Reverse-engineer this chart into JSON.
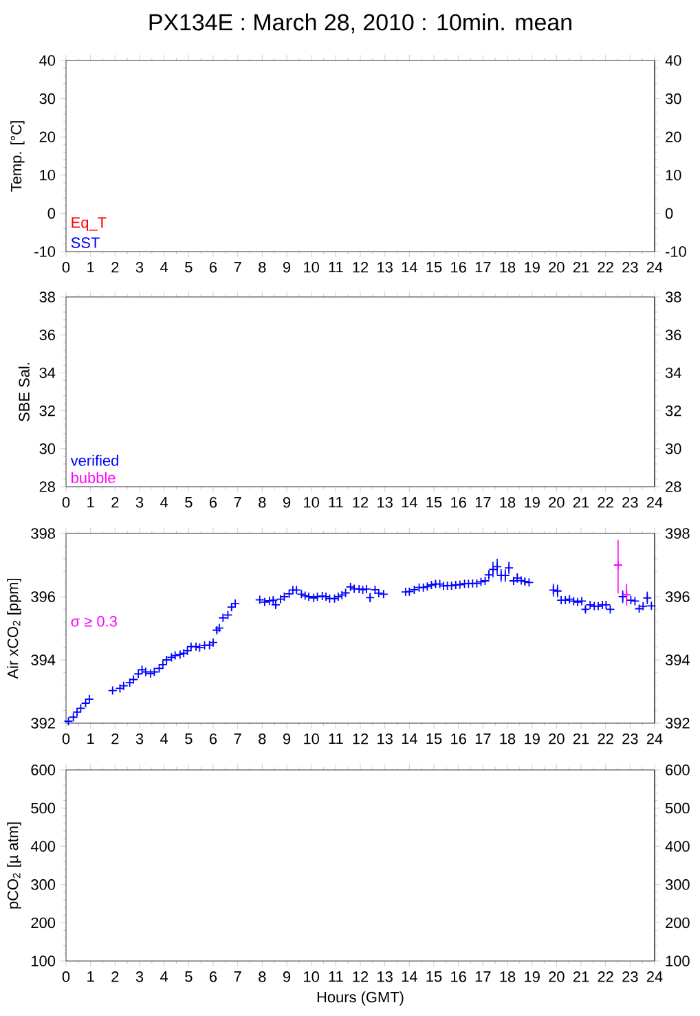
{
  "chart_data": [
    {
      "type": "scatter",
      "title": "PX134E : March 28, 2010 : 10min. mean",
      "ylabel": "Temp. [°C]",
      "xlim": [
        0,
        24
      ],
      "xticks": [
        0,
        1,
        2,
        3,
        4,
        5,
        6,
        7,
        8,
        9,
        10,
        11,
        12,
        13,
        14,
        15,
        16,
        17,
        18,
        19,
        20,
        21,
        22,
        23,
        24
      ],
      "ylim": [
        -10,
        40
      ],
      "yticks": [
        -10,
        0,
        10,
        20,
        30,
        40
      ],
      "y2lim": [
        -10,
        40
      ],
      "y2ticks": [
        -10,
        0,
        10,
        20,
        30,
        40
      ],
      "annotations": [
        "Eq_T",
        "SST"
      ]
    },
    {
      "type": "scatter",
      "ylabel": "SBE Sal.",
      "xlim": [
        0,
        24
      ],
      "xticks": [
        0,
        1,
        2,
        3,
        4,
        5,
        6,
        7,
        8,
        9,
        10,
        11,
        12,
        13,
        14,
        15,
        16,
        17,
        18,
        19,
        20,
        21,
        22,
        23,
        24
      ],
      "ylim": [
        28,
        38
      ],
      "yticks": [
        28,
        30,
        32,
        34,
        36,
        38
      ],
      "y2lim": [
        28,
        38
      ],
      "y2ticks": [
        28,
        30,
        32,
        34,
        36,
        38
      ],
      "annotations": [
        "verified",
        "bubble"
      ]
    },
    {
      "type": "scatter",
      "ylabel": "Air xCO$_{2}$ [ppm]",
      "xlim": [
        0,
        24
      ],
      "xticks": [
        0,
        1,
        2,
        3,
        4,
        5,
        6,
        7,
        8,
        9,
        10,
        11,
        12,
        13,
        14,
        15,
        16,
        17,
        18,
        19,
        20,
        21,
        22,
        23,
        24
      ],
      "ylim": [
        392,
        398
      ],
      "yticks": [
        392,
        394,
        396,
        398
      ],
      "y2lim": [
        392,
        398
      ],
      "y2ticks": [
        392,
        394,
        396,
        398
      ],
      "legend": "left",
      "marker": "cross",
      "series": [
        {
          "color": "#0000ff",
          "x": [
            0.1,
            0.3,
            0.45,
            0.6,
            0.8,
            0.95,
            1.9,
            2.2,
            2.35,
            2.6,
            2.75,
            2.95,
            3.1,
            3.25,
            3.45,
            3.6,
            3.8,
            3.95,
            4.1,
            4.3,
            4.45,
            4.65,
            4.8,
            4.95,
            5.1,
            5.3,
            5.45,
            5.65,
            5.85,
            6.0,
            6.15,
            6.25,
            6.4,
            6.6,
            6.75,
            6.9,
            7.9,
            8.1,
            8.3,
            8.45,
            8.55,
            8.75,
            8.9,
            9.1,
            9.25,
            9.4,
            9.6,
            9.75,
            9.9,
            10.1,
            10.25,
            10.45,
            10.6,
            10.75,
            10.95,
            11.1,
            11.25,
            11.4,
            11.6,
            11.75,
            11.95,
            12.1,
            12.25,
            12.4,
            12.6,
            12.75,
            12.95,
            13.85,
            14.0,
            14.2,
            14.4,
            14.57,
            14.73,
            14.9,
            15.07,
            15.24,
            15.39,
            15.55,
            15.72,
            15.89,
            16.06,
            16.25,
            16.41,
            16.58,
            16.75,
            16.92,
            17.09,
            17.24,
            17.41,
            17.58,
            17.74,
            17.91,
            18.06,
            18.25,
            18.4,
            18.56,
            18.71,
            18.88,
            19.87,
            20.04,
            20.19,
            20.36,
            20.53,
            20.7,
            20.86,
            21.03,
            21.18,
            21.37,
            21.54,
            21.7,
            21.87,
            22.02,
            22.19,
            22.7,
            23.03,
            23.2,
            23.37,
            23.53,
            23.7,
            23.87
          ],
          "values": [
            392.06,
            392.19,
            392.35,
            392.47,
            392.63,
            392.76,
            393.03,
            393.1,
            393.18,
            393.28,
            393.38,
            393.56,
            393.69,
            393.62,
            393.57,
            393.62,
            393.73,
            393.85,
            394.0,
            394.08,
            394.14,
            394.17,
            394.21,
            394.29,
            394.42,
            394.42,
            394.39,
            394.46,
            394.47,
            394.55,
            394.94,
            395.01,
            395.33,
            395.42,
            395.67,
            395.78,
            395.9,
            395.83,
            395.87,
            395.89,
            395.74,
            395.92,
            396.0,
            396.09,
            396.21,
            396.21,
            396.08,
            396.03,
            396.0,
            395.96,
            396.0,
            396.02,
            396.0,
            395.94,
            395.94,
            396.0,
            396.05,
            396.12,
            396.31,
            396.25,
            396.24,
            396.22,
            396.24,
            395.97,
            396.22,
            396.11,
            396.08,
            396.15,
            396.16,
            396.22,
            396.29,
            396.29,
            396.32,
            396.37,
            396.4,
            396.4,
            396.34,
            396.35,
            396.35,
            396.37,
            396.38,
            396.41,
            396.41,
            396.42,
            396.42,
            396.47,
            396.5,
            396.69,
            396.86,
            396.95,
            396.67,
            396.67,
            396.91,
            396.5,
            396.59,
            396.51,
            396.48,
            396.45,
            396.21,
            396.18,
            395.89,
            395.89,
            395.92,
            395.86,
            395.83,
            395.86,
            395.6,
            395.74,
            395.7,
            395.7,
            395.74,
            395.74,
            395.6,
            396.0,
            395.89,
            395.86,
            395.62,
            395.7,
            395.96,
            395.71
          ],
          "errors": [
            null,
            null,
            null,
            null,
            null,
            null,
            null,
            null,
            null,
            null,
            null,
            null,
            null,
            null,
            null,
            null,
            null,
            null,
            null,
            null,
            null,
            null,
            null,
            null,
            null,
            null,
            null,
            null,
            null,
            null,
            0.1,
            null,
            null,
            null,
            0.1,
            0.1,
            null,
            null,
            null,
            0.1,
            0.1,
            null,
            null,
            null,
            null,
            null,
            null,
            null,
            null,
            null,
            null,
            null,
            null,
            null,
            null,
            null,
            null,
            null,
            null,
            null,
            null,
            null,
            null,
            0.15,
            null,
            null,
            null,
            null,
            null,
            null,
            null,
            null,
            null,
            null,
            0.1,
            null,
            null,
            null,
            null,
            null,
            null,
            null,
            null,
            null,
            null,
            null,
            null,
            0.15,
            0.25,
            0.25,
            0.2,
            0.2,
            0.2,
            null,
            0.15,
            null,
            0.1,
            null,
            0.2,
            0.2,
            null,
            null,
            null,
            null,
            null,
            null,
            0.1,
            null,
            null,
            null,
            null,
            null,
            null,
            0.2,
            null,
            null,
            null,
            null,
            0.2,
            null
          ]
        },
        {
          "name": "σ ≥ 0.3",
          "color": "#ff00ff",
          "x": [
            22.51,
            22.86
          ],
          "values": [
            397.0,
            396.06
          ],
          "errors": [
            [
              396.1,
              397.8
            ],
            0.35
          ]
        }
      ]
    },
    {
      "type": "scatter",
      "ylabel": "pCO$_{2}$ [µ atm]",
      "xlabel": "Hours (GMT)",
      "xlim": [
        0,
        24
      ],
      "xticks": [
        0,
        1,
        2,
        3,
        4,
        5,
        6,
        7,
        8,
        9,
        10,
        11,
        12,
        13,
        14,
        15,
        16,
        17,
        18,
        19,
        20,
        21,
        22,
        23,
        24
      ],
      "ylim": [
        100,
        600
      ],
      "yticks": [
        100,
        200,
        300,
        400,
        500,
        600
      ],
      "y2lim": [
        100,
        600
      ],
      "y2ticks": [
        100,
        200,
        300,
        400,
        500,
        600
      ]
    }
  ]
}
